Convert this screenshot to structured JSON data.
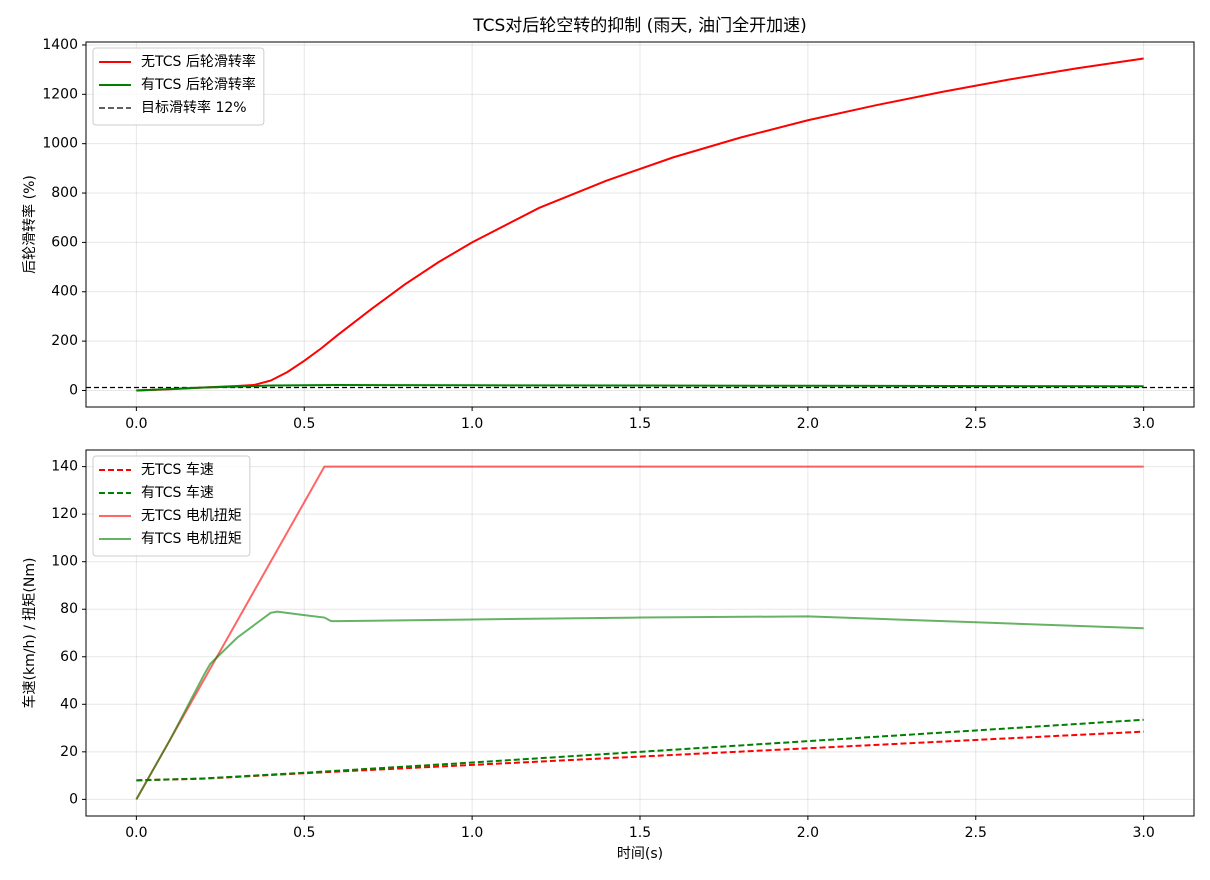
{
  "chart_data": [
    {
      "type": "line",
      "title": "TCS对后轮空转的抑制 (雨天, 油门全开加速)",
      "y_label": "后轮滑转率 (%)",
      "xlim": [
        -0.15,
        3.15
      ],
      "xticks": [
        {
          "value": 0,
          "label": "0.0"
        },
        0.5,
        {
          "value": 1,
          "label": "1.0"
        },
        1.5,
        {
          "value": 2,
          "label": "2.0"
        },
        2.5,
        {
          "value": 3,
          "label": "3.0"
        }
      ],
      "ylim": [
        -67,
        1412
      ],
      "yticks": [
        0,
        200,
        400,
        600,
        800,
        1000,
        1200,
        1400
      ],
      "grid": true,
      "legend": "upper left",
      "series": [
        {
          "name": "无TCS 后轮滑转率",
          "color": "#ff0000",
          "dashed": false,
          "opacity": 1,
          "x": [
            0,
            0.1,
            0.2,
            0.3,
            0.35,
            0.4,
            0.45,
            0.5,
            0.55,
            0.6,
            0.7,
            0.8,
            0.9,
            1.0,
            1.2,
            1.4,
            1.6,
            1.8,
            2.0,
            2.2,
            2.4,
            2.6,
            2.8,
            3.0
          ],
          "values": [
            0,
            5,
            12,
            18,
            22,
            40,
            75,
            120,
            170,
            225,
            330,
            430,
            520,
            600,
            740,
            850,
            945,
            1025,
            1095,
            1155,
            1210,
            1260,
            1305,
            1345
          ]
        },
        {
          "name": "有TCS 后轮滑转率",
          "color": "#008000",
          "dashed": false,
          "opacity": 1,
          "x": [
            0,
            0.2,
            0.4,
            0.6,
            1.0,
            2.0,
            3.0
          ],
          "values": [
            0,
            12,
            20,
            22,
            21,
            19,
            17
          ]
        }
      ],
      "reference_line": {
        "name": "目标滑转率 12%",
        "value": 12,
        "color": "#000000"
      }
    },
    {
      "type": "line",
      "x_label": "时间(s)",
      "y_label": "车速(km/h) / 扭矩(Nm)",
      "xlim": [
        -0.15,
        3.15
      ],
      "xticks": [
        {
          "value": 0,
          "label": "0.0"
        },
        0.5,
        {
          "value": 1,
          "label": "1.0"
        },
        1.5,
        {
          "value": 2,
          "label": "2.0"
        },
        2.5,
        {
          "value": 3,
          "label": "3.0"
        }
      ],
      "ylim": [
        -7,
        147
      ],
      "yticks": [
        0,
        20,
        40,
        60,
        80,
        100,
        120,
        140
      ],
      "grid": true,
      "legend": "upper left",
      "series": [
        {
          "name": "无TCS 车速",
          "color": "#ff0000",
          "dashed": true,
          "opacity": 1,
          "x": [
            0,
            0.2,
            0.5,
            1.0,
            1.5,
            2.0,
            2.5,
            3.0
          ],
          "values": [
            8,
            8.7,
            11,
            14.5,
            18,
            21.5,
            25,
            28.5
          ]
        },
        {
          "name": "有TCS 车速",
          "color": "#008000",
          "dashed": true,
          "opacity": 1,
          "x": [
            0,
            0.2,
            0.5,
            1.0,
            1.5,
            2.0,
            2.5,
            3.0
          ],
          "values": [
            8,
            8.8,
            11.2,
            15.5,
            20,
            24.5,
            29,
            33.5
          ]
        },
        {
          "name": "无TCS 电机扭矩",
          "color": "#ff0000",
          "dashed": false,
          "opacity": 0.6,
          "x": [
            0,
            0.56,
            3.0
          ],
          "values": [
            0,
            140,
            140
          ]
        },
        {
          "name": "有TCS 电机扭矩",
          "color": "#008000",
          "dashed": false,
          "opacity": 0.6,
          "x": [
            0,
            0.1,
            0.2,
            0.22,
            0.3,
            0.4,
            0.42,
            0.5,
            0.56,
            0.58,
            0.6,
            1.0,
            1.5,
            2.0,
            2.5,
            3.0
          ],
          "values": [
            0,
            25,
            52,
            57,
            68,
            78.5,
            79,
            77.5,
            76.5,
            75,
            75,
            75.7,
            76.5,
            77,
            74.5,
            72
          ]
        }
      ]
    }
  ]
}
